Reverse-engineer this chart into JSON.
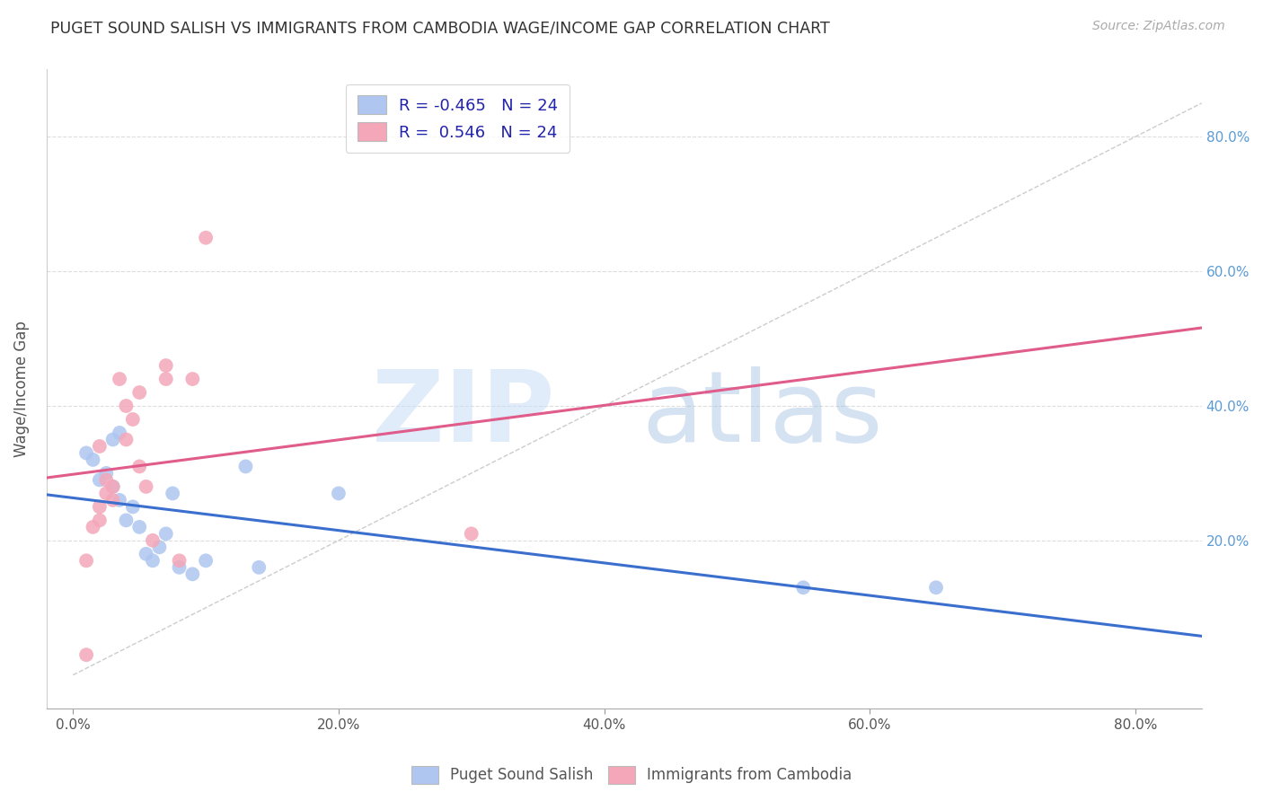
{
  "title": "PUGET SOUND SALISH VS IMMIGRANTS FROM CAMBODIA WAGE/INCOME GAP CORRELATION CHART",
  "source": "Source: ZipAtlas.com",
  "ylabel": "Wage/Income Gap",
  "right_ytick_labels": [
    "20.0%",
    "40.0%",
    "60.0%",
    "80.0%"
  ],
  "right_ytick_values": [
    20.0,
    40.0,
    60.0,
    80.0
  ],
  "xtick_labels": [
    "0.0%",
    "20.0%",
    "40.0%",
    "60.0%",
    "80.0%"
  ],
  "xtick_values": [
    0.0,
    20.0,
    40.0,
    60.0,
    80.0
  ],
  "xlim": [
    -2.0,
    85.0
  ],
  "ylim": [
    -5.0,
    90.0
  ],
  "legend1_label": "R = -0.465   N = 24",
  "legend2_label": "R =  0.546   N = 24",
  "legend1_color": "#aec6f0",
  "legend2_color": "#f4a7b9",
  "blue_line_color": "#3b6fce",
  "pink_line_color": "#e05c8a",
  "scatter_blue_color": "#aec6f0",
  "scatter_pink_color": "#f4a7b9",
  "title_color": "#333333",
  "right_axis_color": "#5b9bd5",
  "blue_points_x": [
    1.0,
    1.5,
    2.0,
    2.5,
    3.0,
    3.0,
    3.5,
    3.5,
    4.0,
    4.5,
    5.0,
    5.5,
    6.0,
    6.5,
    7.0,
    7.5,
    8.0,
    9.0,
    10.0,
    13.0,
    14.0,
    20.0,
    55.0,
    65.0
  ],
  "blue_points_y": [
    33.0,
    32.0,
    29.0,
    30.0,
    28.0,
    35.0,
    36.0,
    26.0,
    23.0,
    25.0,
    22.0,
    18.0,
    17.0,
    19.0,
    21.0,
    27.0,
    16.0,
    15.0,
    17.0,
    31.0,
    16.0,
    27.0,
    13.0,
    13.0
  ],
  "pink_points_x": [
    1.0,
    1.0,
    1.5,
    2.0,
    2.0,
    2.0,
    2.5,
    2.5,
    3.0,
    3.0,
    3.5,
    4.0,
    4.0,
    4.5,
    5.0,
    5.0,
    5.5,
    6.0,
    7.0,
    7.0,
    8.0,
    9.0,
    10.0,
    30.0
  ],
  "pink_points_y": [
    3.0,
    17.0,
    22.0,
    23.0,
    25.0,
    34.0,
    27.0,
    29.0,
    28.0,
    26.0,
    44.0,
    35.0,
    40.0,
    38.0,
    31.0,
    42.0,
    28.0,
    20.0,
    46.0,
    44.0,
    17.0,
    44.0,
    65.0,
    21.0
  ]
}
